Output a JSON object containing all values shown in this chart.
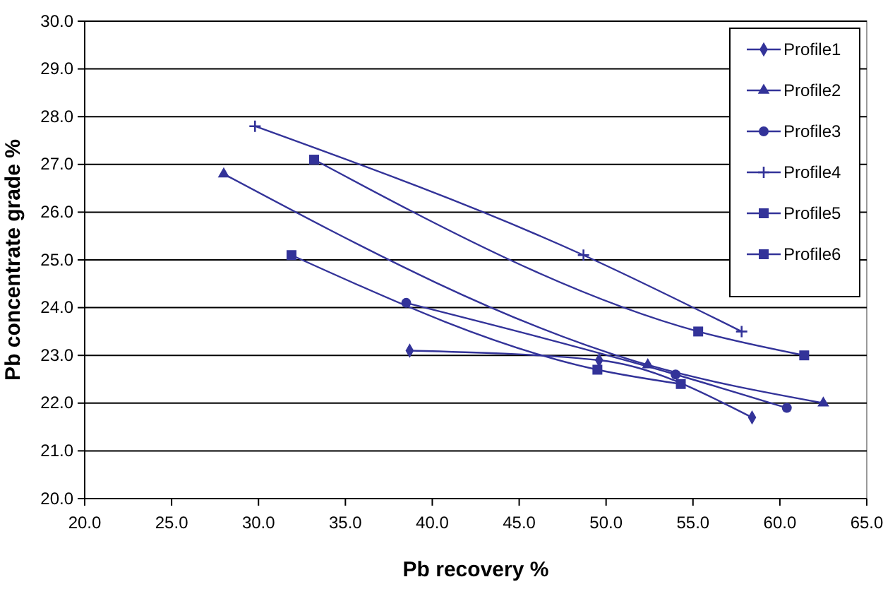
{
  "chart_data": {
    "type": "line",
    "xlabel": "Pb recovery %",
    "ylabel": "Pb concentrate grade %",
    "xlim": [
      20,
      65
    ],
    "xticks": [
      {
        "value": 20,
        "label": "20.0"
      },
      {
        "value": 25,
        "label": "25.0"
      },
      {
        "value": 30,
        "label": "30.0"
      },
      {
        "value": 35,
        "label": "35.0"
      },
      {
        "value": 40,
        "label": "40.0"
      },
      {
        "value": 45,
        "label": "45.0"
      },
      {
        "value": 50,
        "label": "50.0"
      },
      {
        "value": 55,
        "label": "55.0"
      },
      {
        "value": 60,
        "label": "60.0"
      },
      {
        "value": 65,
        "label": "65.0"
      }
    ],
    "ylim": [
      20,
      30
    ],
    "yticks": [
      {
        "value": 20,
        "label": "20.0"
      },
      {
        "value": 21,
        "label": "21.0"
      },
      {
        "value": 22,
        "label": "22.0"
      },
      {
        "value": 23,
        "label": "23.0"
      },
      {
        "value": 24,
        "label": "24.0"
      },
      {
        "value": 25,
        "label": "25.0"
      },
      {
        "value": 26,
        "label": "26.0"
      },
      {
        "value": 27,
        "label": "27.0"
      },
      {
        "value": 28,
        "label": "28.0"
      },
      {
        "value": 29,
        "label": "29.0"
      },
      {
        "value": 30,
        "label": "30.0"
      }
    ],
    "grid": "y",
    "legend": "top right",
    "series": [
      {
        "name": "Profile1",
        "color": "#333399",
        "marker": "diamond",
        "x": [
          38.7,
          49.6,
          58.4
        ],
        "values": [
          23.1,
          22.9,
          21.7
        ]
      },
      {
        "name": "Profile2",
        "color": "#333399",
        "marker": "triangle",
        "x": [
          28.0,
          52.4,
          62.5
        ],
        "values": [
          26.8,
          22.8,
          22.0
        ]
      },
      {
        "name": "Profile3",
        "color": "#333399",
        "marker": "circle",
        "x": [
          38.5,
          54.0,
          60.4
        ],
        "values": [
          24.1,
          22.6,
          21.9
        ]
      },
      {
        "name": "Profile4",
        "color": "#333399",
        "marker": "cross",
        "x": [
          29.8,
          48.7,
          57.8
        ],
        "values": [
          27.8,
          25.1,
          23.5
        ]
      },
      {
        "name": "Profile5",
        "color": "#333399",
        "marker": "square",
        "x": [
          33.2,
          55.3,
          61.4
        ],
        "values": [
          27.1,
          23.5,
          23.0
        ]
      },
      {
        "name": "Profile6",
        "color": "#333399",
        "marker": "square",
        "x": [
          31.9,
          49.5,
          54.3
        ],
        "values": [
          25.1,
          22.7,
          22.4
        ]
      }
    ]
  }
}
